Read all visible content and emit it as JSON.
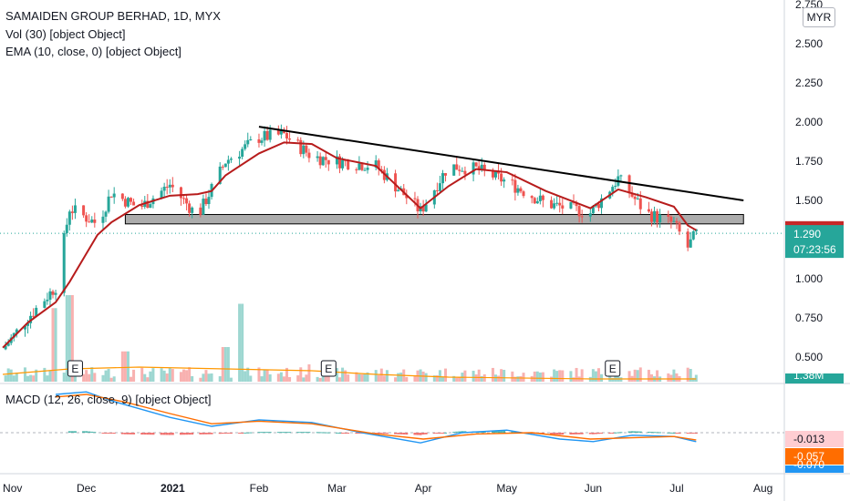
{
  "header": {
    "title": "SAMAIDEN GROUP BERHAD, 1D, MYX",
    "volume_legend": "Vol (30) [object Object]",
    "ema_legend": "EMA (10, close, 0) [object Object]",
    "macd_legend": "MACD (12, 26, close, 9) [object Object]",
    "currency": "MYR"
  },
  "price_axis": {
    "ticks": [
      "2.750",
      "2.500",
      "2.250",
      "2.000",
      "1.750",
      "1.500",
      "1.000",
      "0.750",
      "0.500"
    ],
    "tick_values": [
      2.75,
      2.5,
      2.25,
      2.0,
      1.75,
      1.5,
      1.0,
      0.75,
      0.5
    ]
  },
  "time_axis": {
    "labels": [
      "Nov",
      "Dec",
      "2021",
      "Feb",
      "Mar",
      "Apr",
      "May",
      "Jun",
      "Jul",
      "Aug"
    ]
  },
  "price_tags": {
    "resistance": "1.315",
    "last_price": "1.290",
    "countdown": "07:23:56",
    "volume": "1.38M",
    "macd_hist": "-0.013",
    "macd_signal": "-0.057",
    "macd_line": "-0.070"
  },
  "earnings_labels": [
    "E",
    "E",
    "E"
  ],
  "colors": {
    "up": "#26a69a",
    "down": "#ef5350",
    "ema": "#b71c1c",
    "trendline": "#000000",
    "support_zone": "#9e9e9e",
    "macd_line": "#2196f3",
    "signal_line": "#ff6d00",
    "volume_ma": "#ff9800",
    "last_price_tag": "#26a69a",
    "resistance_tag": "#c62828"
  },
  "chart_data": {
    "type": "candlestick",
    "y_range": [
      0.3,
      2.85
    ],
    "trendline": {
      "from": {
        "date": "2021-02-01",
        "price": 1.97
      },
      "to": {
        "date": "2021-07-25",
        "price": 1.5
      }
    },
    "support_zone": {
      "from_date": "2020-12-15",
      "to_date": "2021-07-25",
      "low": 1.35,
      "high": 1.41
    },
    "ema_path": [
      [
        "2020-11-01",
        0.56
      ],
      [
        "2020-11-10",
        0.72
      ],
      [
        "2020-11-20",
        0.85
      ],
      [
        "2020-11-25",
        0.98
      ],
      [
        "2020-11-30",
        1.13
      ],
      [
        "2020-12-05",
        1.28
      ],
      [
        "2020-12-10",
        1.36
      ],
      [
        "2020-12-20",
        1.47
      ],
      [
        "2020-12-31",
        1.53
      ],
      [
        "2021-01-10",
        1.54
      ],
      [
        "2021-01-15",
        1.56
      ],
      [
        "2021-01-20",
        1.66
      ],
      [
        "2021-02-01",
        1.8
      ],
      [
        "2021-02-10",
        1.87
      ],
      [
        "2021-02-20",
        1.86
      ],
      [
        "2021-03-01",
        1.77
      ],
      [
        "2021-03-15",
        1.72
      ],
      [
        "2021-03-31",
        1.45
      ],
      [
        "2021-04-10",
        1.59
      ],
      [
        "2021-04-20",
        1.7
      ],
      [
        "2021-05-01",
        1.68
      ],
      [
        "2021-05-15",
        1.56
      ],
      [
        "2021-05-31",
        1.45
      ],
      [
        "2021-06-10",
        1.57
      ],
      [
        "2021-06-20",
        1.52
      ],
      [
        "2021-06-30",
        1.46
      ],
      [
        "2021-07-05",
        1.34
      ],
      [
        "2021-07-08",
        1.31
      ]
    ],
    "candles_keypoints": [
      [
        "2020-11-01",
        0.55
      ],
      [
        "2020-11-10",
        0.75
      ],
      [
        "2020-11-20",
        0.95
      ],
      [
        "2020-11-25",
        1.45
      ],
      [
        "2020-12-05",
        1.35
      ],
      [
        "2020-12-10",
        1.55
      ],
      [
        "2020-12-20",
        1.45
      ],
      [
        "2020-12-31",
        1.6
      ],
      [
        "2021-01-10",
        1.4
      ],
      [
        "2021-01-20",
        1.75
      ],
      [
        "2021-02-01",
        1.9
      ],
      [
        "2021-02-10",
        1.92
      ],
      [
        "2021-02-20",
        1.78
      ],
      [
        "2021-03-01",
        1.75
      ],
      [
        "2021-03-15",
        1.72
      ],
      [
        "2021-03-31",
        1.43
      ],
      [
        "2021-04-10",
        1.72
      ],
      [
        "2021-04-20",
        1.7
      ],
      [
        "2021-05-01",
        1.62
      ],
      [
        "2021-05-15",
        1.48
      ],
      [
        "2021-05-31",
        1.42
      ],
      [
        "2021-06-10",
        1.64
      ],
      [
        "2021-06-20",
        1.42
      ],
      [
        "2021-06-30",
        1.35
      ],
      [
        "2021-07-05",
        1.2
      ],
      [
        "2021-07-08",
        1.29
      ]
    ],
    "volume_spikes": [
      [
        "2020-11-20",
        0.85
      ],
      [
        "2020-11-25",
        1.0
      ],
      [
        "2021-01-25",
        0.9
      ],
      [
        "2021-01-20",
        0.4
      ],
      [
        "2020-12-15",
        0.35
      ],
      [
        "2021-02-20",
        0.2
      ]
    ],
    "earnings_dates": [
      "2020-11-27",
      "2021-02-26",
      "2021-06-08"
    ],
    "macd": {
      "line_path": [
        [
          "2020-11-20",
          0.3
        ],
        [
          "2020-12-01",
          0.32
        ],
        [
          "2020-12-10",
          0.25
        ],
        [
          "2020-12-31",
          0.12
        ],
        [
          "2021-01-15",
          0.05
        ],
        [
          "2021-02-01",
          0.1
        ],
        [
          "2021-02-20",
          0.08
        ],
        [
          "2021-03-10",
          0.0
        ],
        [
          "2021-03-31",
          -0.08
        ],
        [
          "2021-04-15",
          0.0
        ],
        [
          "2021-05-01",
          0.02
        ],
        [
          "2021-05-20",
          -0.05
        ],
        [
          "2021-06-01",
          -0.07
        ],
        [
          "2021-06-15",
          -0.02
        ],
        [
          "2021-06-30",
          -0.03
        ],
        [
          "2021-07-08",
          -0.07
        ]
      ],
      "signal_path": [
        [
          "2020-11-20",
          0.28
        ],
        [
          "2020-12-01",
          0.3
        ],
        [
          "2020-12-15",
          0.24
        ],
        [
          "2020-12-31",
          0.15
        ],
        [
          "2021-01-15",
          0.07
        ],
        [
          "2021-02-01",
          0.09
        ],
        [
          "2021-02-20",
          0.07
        ],
        [
          "2021-03-15",
          -0.01
        ],
        [
          "2021-04-01",
          -0.05
        ],
        [
          "2021-04-20",
          -0.01
        ],
        [
          "2021-05-10",
          0.0
        ],
        [
          "2021-05-31",
          -0.05
        ],
        [
          "2021-06-15",
          -0.04
        ],
        [
          "2021-06-30",
          -0.03
        ],
        [
          "2021-07-08",
          -0.057
        ]
      ]
    }
  }
}
